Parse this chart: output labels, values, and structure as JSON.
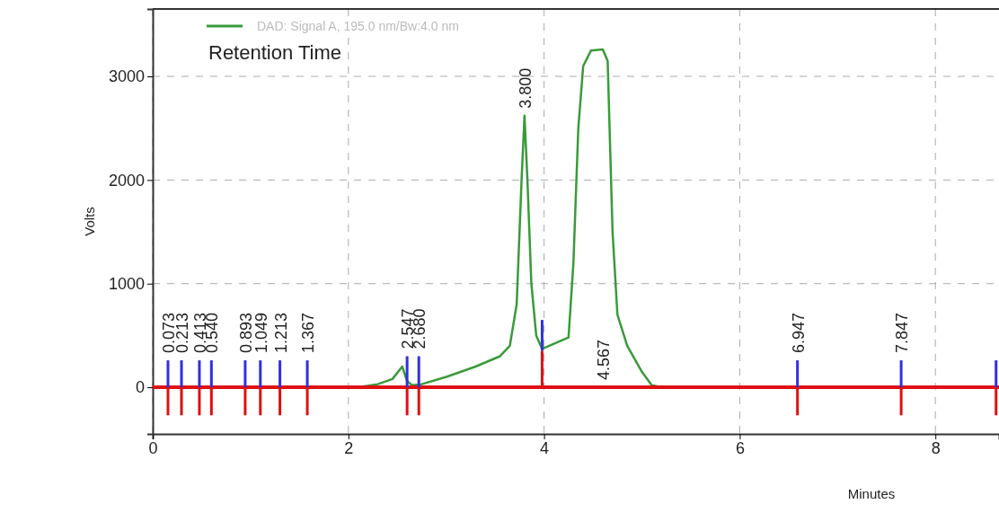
{
  "chart_data": {
    "type": "line",
    "xlabel": "Minutes",
    "ylabel": "Volts",
    "xlim": [
      0,
      8.65
    ],
    "ylim": [
      -450,
      3650
    ],
    "xticks": [
      0,
      2,
      4,
      6,
      8
    ],
    "yticks": [
      0,
      1000,
      2000,
      3000
    ],
    "grid": true,
    "legend": "top left",
    "line_style": "solid",
    "series": [
      {
        "name": "DAD: Signal A, 195.0 nm/Bw:4.0 nm",
        "color": "#3a9a3a",
        "x": [
          0,
          2.1,
          2.3,
          2.45,
          2.55,
          2.6,
          2.65,
          2.75,
          3.0,
          3.3,
          3.55,
          3.65,
          3.72,
          3.77,
          3.8,
          3.83,
          3.87,
          3.92,
          3.98,
          4.1,
          4.25,
          4.3,
          4.35,
          4.4,
          4.48,
          4.6,
          4.65,
          4.7,
          4.75,
          4.85,
          5.0,
          5.1,
          5.2,
          8.65
        ],
        "values": [
          0,
          0,
          30,
          80,
          200,
          60,
          20,
          30,
          100,
          200,
          300,
          400,
          800,
          2000,
          2620,
          2000,
          1000,
          500,
          370,
          420,
          480,
          1200,
          2500,
          3100,
          3250,
          3260,
          3150,
          1500,
          700,
          400,
          150,
          20,
          0,
          0
        ]
      },
      {
        "color": "#3030e0",
        "type": "bar",
        "x": [
          0.156,
          0.294,
          0.477,
          0.6,
          0.945,
          1.1,
          1.3,
          1.58,
          2.6,
          2.72,
          3.98,
          6.59,
          7.65,
          8.62
        ],
        "base": [
          0,
          0,
          0,
          0,
          0,
          0,
          0,
          0,
          0,
          0,
          350,
          0,
          0,
          0
        ],
        "values": [
          260,
          260,
          260,
          260,
          260,
          260,
          260,
          260,
          300,
          300,
          300,
          260,
          260,
          260
        ]
      },
      {
        "color": "#e01010",
        "type": "bar",
        "x": [
          0.156,
          0.294,
          0.477,
          0.6,
          0.945,
          1.1,
          1.3,
          1.58,
          2.6,
          2.72,
          3.98,
          6.59,
          7.65,
          8.62
        ],
        "values": [
          -270,
          -270,
          -270,
          -270,
          -270,
          -270,
          -270,
          -270,
          -270,
          -270,
          350,
          -270,
          -270,
          -270
        ]
      }
    ],
    "ref_lines": [
      {
        "axis": "y",
        "value": 0,
        "color": "#e01010"
      }
    ],
    "annotations": [
      "Retention Time",
      {
        "text": "0.073",
        "x": 0.156,
        "y": 260
      },
      {
        "text": "0.213",
        "x": 0.294,
        "y": 260
      },
      {
        "text": "0.413",
        "x": 0.477,
        "y": 260
      },
      {
        "text": "0.540",
        "x": 0.6,
        "y": 260
      },
      {
        "text": "0.893",
        "x": 0.945,
        "y": 260
      },
      {
        "text": "1.049",
        "x": 1.1,
        "y": 260
      },
      {
        "text": "1.213",
        "x": 1.3,
        "y": 260
      },
      {
        "text": "1.367",
        "x": 1.58,
        "y": 260
      },
      {
        "text": "2.547",
        "x": 2.6,
        "y": 300
      },
      {
        "text": "2.680",
        "x": 2.72,
        "y": 300
      },
      {
        "text": "3.800",
        "x": 3.8,
        "y": 2620
      },
      {
        "text": "4.567",
        "x": 4.6,
        "y": 0
      },
      {
        "text": "6.947",
        "x": 6.59,
        "y": 260
      },
      {
        "text": "7.847",
        "x": 7.65,
        "y": 260
      }
    ]
  }
}
